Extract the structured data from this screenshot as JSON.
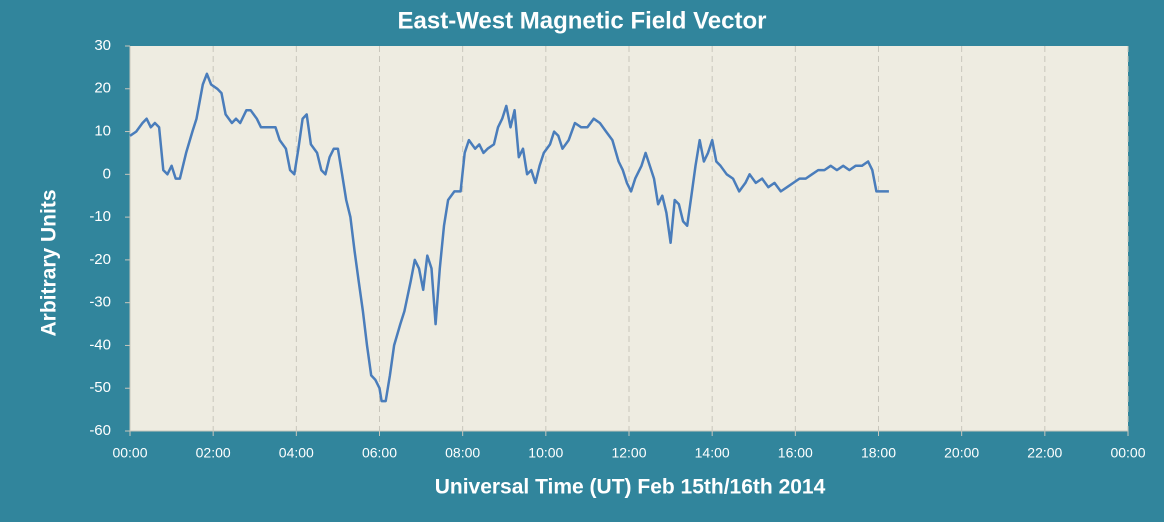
{
  "chart_data": {
    "type": "line",
    "title": "East-West Magnetic Field Vector",
    "x_label": "Universal Time (UT)   Feb  15th/16th 2014",
    "y_label": "Arbitrary Units",
    "x": [
      0,
      0.15,
      0.3,
      0.4,
      0.5,
      0.6,
      0.7,
      0.8,
      0.9,
      1.0,
      1.1,
      1.2,
      1.35,
      1.5,
      1.6,
      1.75,
      1.85,
      1.95,
      2.1,
      2.2,
      2.3,
      2.45,
      2.55,
      2.65,
      2.8,
      2.9,
      3.05,
      3.15,
      3.3,
      3.5,
      3.6,
      3.75,
      3.85,
      3.95,
      4.05,
      4.15,
      4.25,
      4.35,
      4.5,
      4.6,
      4.7,
      4.8,
      4.9,
      5.0,
      5.1,
      5.2,
      5.3,
      5.4,
      5.5,
      5.6,
      5.7,
      5.8,
      5.9,
      6.0,
      6.05,
      6.15,
      6.25,
      6.35,
      6.5,
      6.6,
      6.75,
      6.85,
      6.95,
      7.05,
      7.15,
      7.25,
      7.35,
      7.45,
      7.55,
      7.65,
      7.8,
      7.95,
      8.05,
      8.15,
      8.3,
      8.4,
      8.5,
      8.6,
      8.75,
      8.85,
      8.95,
      9.05,
      9.15,
      9.25,
      9.35,
      9.45,
      9.55,
      9.65,
      9.75,
      9.85,
      9.95,
      10.1,
      10.2,
      10.3,
      10.4,
      10.55,
      10.7,
      10.85,
      11.0,
      11.15,
      11.3,
      11.45,
      11.6,
      11.75,
      11.85,
      11.95,
      12.05,
      12.15,
      12.3,
      12.4,
      12.5,
      12.6,
      12.7,
      12.8,
      12.9,
      13.0,
      13.1,
      13.2,
      13.3,
      13.4,
      13.5,
      13.6,
      13.7,
      13.8,
      13.9,
      14.0,
      14.1,
      14.2,
      14.35,
      14.5,
      14.65,
      14.8,
      14.9,
      15.05,
      15.2,
      15.35,
      15.5,
      15.65,
      15.8,
      15.95,
      16.1,
      16.25,
      16.4,
      16.55,
      16.7,
      16.85,
      17.0,
      17.15,
      17.3,
      17.45,
      17.6,
      17.75,
      17.85,
      17.95,
      18.1,
      18.25
    ],
    "series": [
      {
        "name": "East-West",
        "color": "#4a7dbb",
        "values": [
          9,
          10,
          12,
          13,
          11,
          12,
          11,
          1,
          0,
          2,
          -1,
          -1,
          5,
          10,
          13,
          21,
          23.5,
          21,
          20,
          19,
          14,
          12,
          13,
          12,
          15,
          15,
          13,
          11,
          11,
          11,
          8,
          6,
          1,
          0,
          6,
          13,
          14,
          7,
          5,
          1,
          0,
          4,
          6,
          6,
          0,
          -6,
          -10,
          -18,
          -25,
          -32,
          -40,
          -47,
          -48,
          -50,
          -53,
          -53,
          -47,
          -40,
          -35,
          -32,
          -25,
          -20,
          -22,
          -27,
          -19,
          -22,
          -35,
          -22,
          -12,
          -6,
          -4,
          -4,
          5,
          8,
          6,
          7,
          5,
          6,
          7,
          11,
          13,
          16,
          11,
          15,
          4,
          6,
          0,
          1,
          -2,
          2,
          5,
          7,
          10,
          9,
          6,
          8,
          12,
          11,
          11,
          13,
          12,
          10,
          8,
          3,
          1,
          -2,
          -4,
          -1,
          2,
          5,
          2,
          -1,
          -7,
          -5,
          -9,
          -16,
          -6,
          -7,
          -11,
          -12,
          -5,
          2,
          8,
          3,
          5,
          8,
          3,
          2,
          0,
          -1,
          -4,
          -2,
          0,
          -2,
          -1,
          -3,
          -2,
          -4,
          -3,
          -2,
          -1,
          -1,
          0,
          1,
          1,
          2,
          1,
          2,
          1,
          2,
          2,
          3,
          1,
          -4,
          -4,
          -4
        ]
      }
    ],
    "xlim": [
      0,
      24
    ],
    "xticks": [
      {
        "value": 0,
        "label": "00:00"
      },
      {
        "value": 2,
        "label": "02:00"
      },
      {
        "value": 4,
        "label": "04:00"
      },
      {
        "value": 6,
        "label": "06:00"
      },
      {
        "value": 8,
        "label": "08:00"
      },
      {
        "value": 10,
        "label": "10:00"
      },
      {
        "value": 12,
        "label": "12:00"
      },
      {
        "value": 14,
        "label": "14:00"
      },
      {
        "value": 16,
        "label": "16:00"
      },
      {
        "value": 18,
        "label": "18:00"
      },
      {
        "value": 20,
        "label": "20:00"
      },
      {
        "value": 22,
        "label": "22:00"
      },
      {
        "value": 24,
        "label": "00:00"
      }
    ],
    "ylim": [
      -60,
      30
    ],
    "yticks": [
      -60,
      -50,
      -40,
      -30,
      -20,
      -10,
      0,
      10,
      20,
      30
    ],
    "grid": true
  }
}
